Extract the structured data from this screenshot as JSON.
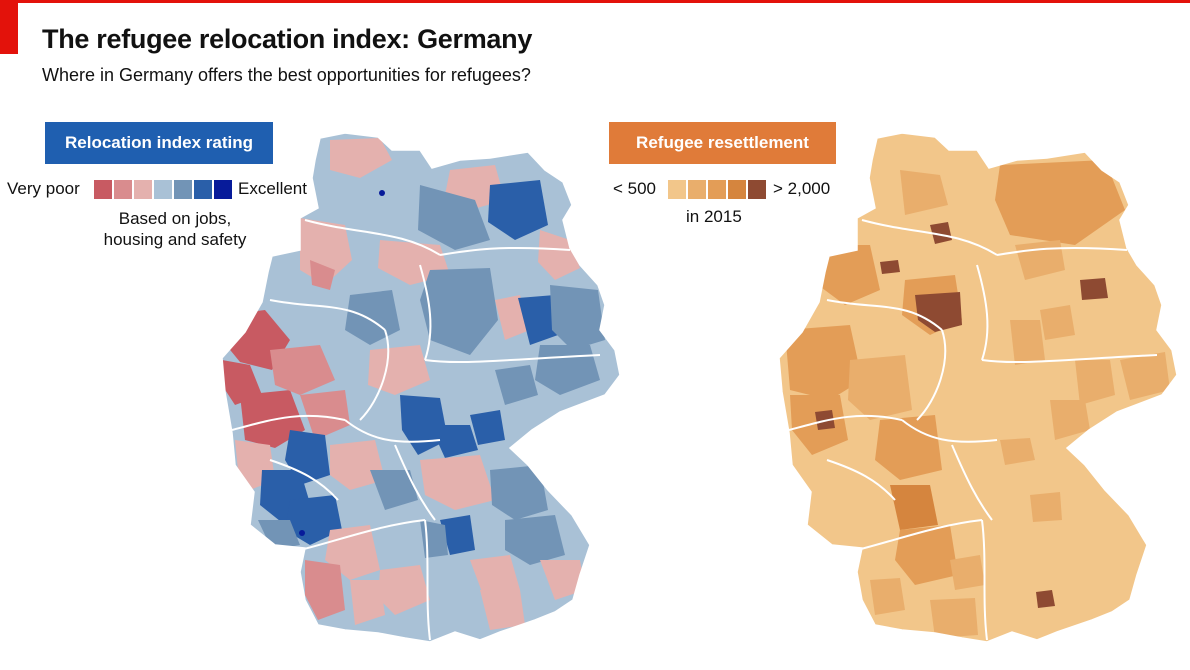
{
  "header": {
    "title": "The refugee relocation index: Germany",
    "subtitle": "Where in Germany offers the best opportunities for refugees?"
  },
  "left_legend": {
    "title": "Relocation index rating",
    "low_label": "Very poor",
    "high_label": "Excellent",
    "note_line1": "Based on jobs,",
    "note_line2": "housing and safety",
    "colors": [
      "#c85a62",
      "#d98c8e",
      "#e4b1ae",
      "#a9c1d6",
      "#7294b6",
      "#2a5fa9",
      "#071b9a"
    ]
  },
  "right_legend": {
    "title": "Refugee resettlement",
    "low_label": "< 500",
    "high_label": "> 2,000",
    "note": "in 2015",
    "colors": [
      "#f2c68a",
      "#e9ae6c",
      "#e39d57",
      "#d5853e",
      "#8e4a32"
    ]
  },
  "colors": {
    "brand_red": "#e3120b",
    "left_base": "#a9c1d6",
    "right_base": "#f2c68a",
    "border": "#ffffff"
  }
}
